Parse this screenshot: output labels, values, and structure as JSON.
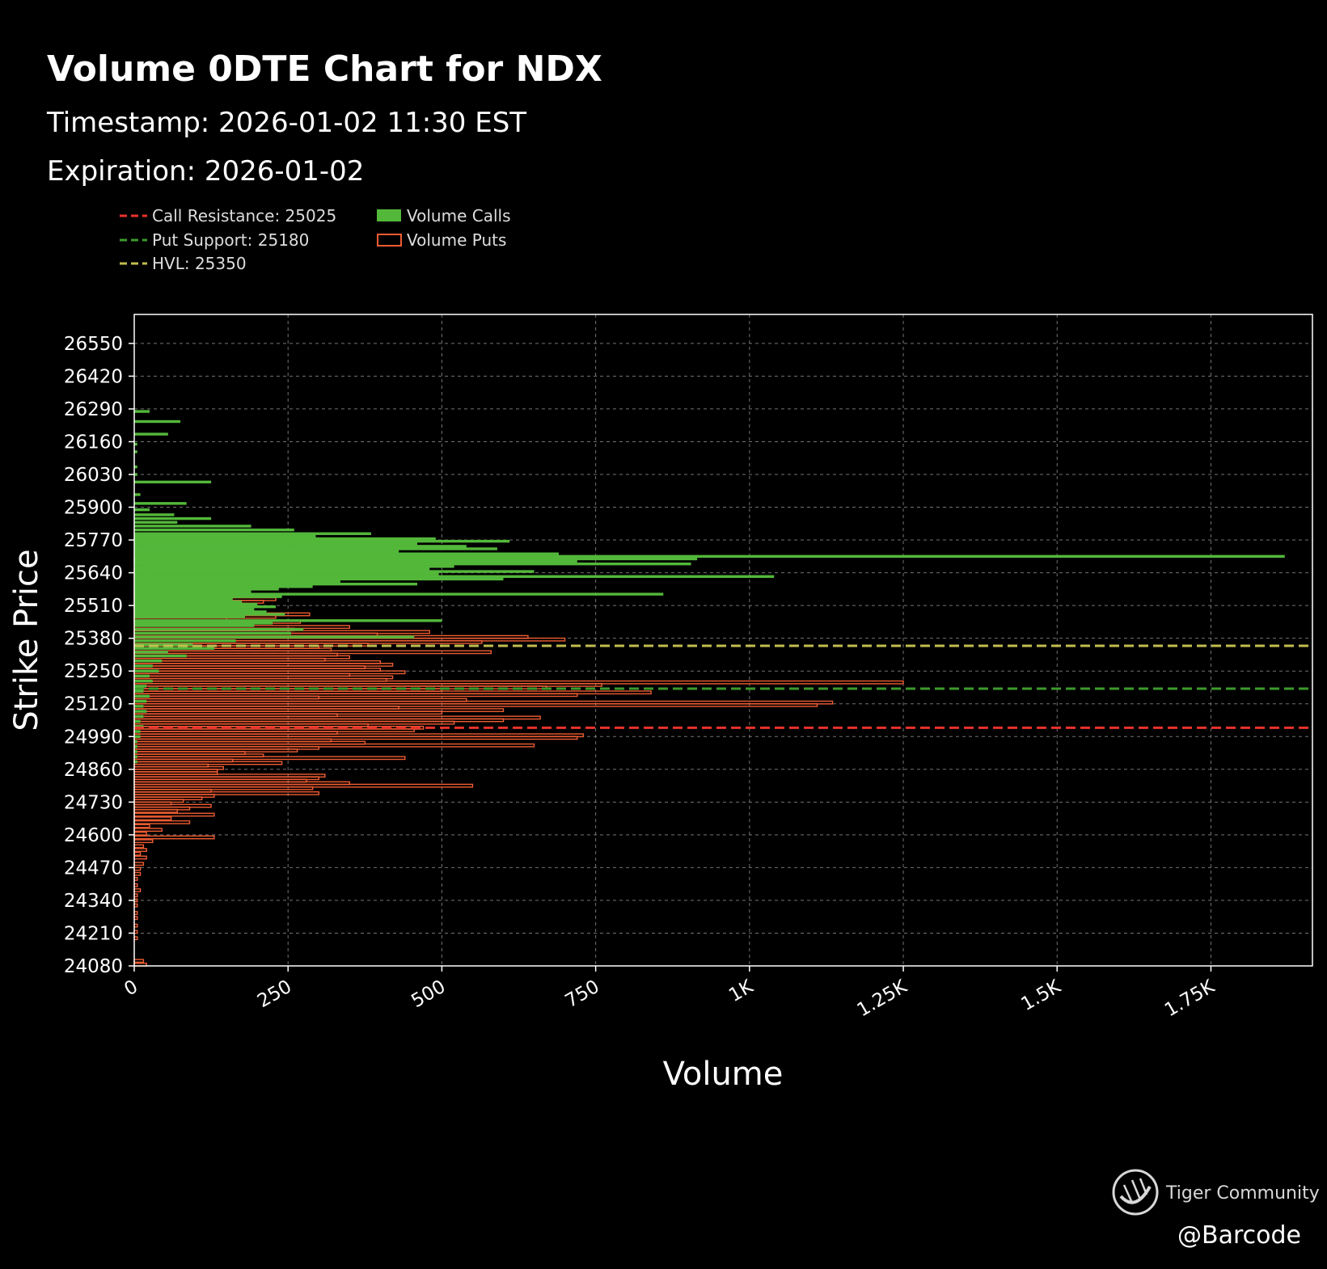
{
  "colors": {
    "background": "#000000",
    "calls": "#53b83a",
    "puts": "#ee5c32",
    "call_resistance": "#e8322c",
    "put_support": "#3c9a2c",
    "hvl": "#c2bd4f",
    "grid": "#9a9a9a",
    "text": "#ffffff",
    "legend_text": "#dddddd"
  },
  "chart_data": {
    "type": "bar",
    "orientation": "horizontal",
    "title": "Volume 0DTE Chart for NDX",
    "subtitles": [
      "Timestamp: 2026-01-02 11:30 EST",
      "Expiration: 2026-01-02"
    ],
    "xlabel": "Volume",
    "ylabel": "Strike Price",
    "xlim": [
      0,
      1915
    ],
    "ylim": [
      24080,
      26665
    ],
    "grid": true,
    "x_ticks": [
      {
        "value": 0,
        "label": "0"
      },
      {
        "value": 250,
        "label": "250"
      },
      {
        "value": 500,
        "label": "500"
      },
      {
        "value": 750,
        "label": "750"
      },
      {
        "value": 1000,
        "label": "1K"
      },
      {
        "value": 1250,
        "label": "1.25K"
      },
      {
        "value": 1500,
        "label": "1.5K"
      },
      {
        "value": 1750,
        "label": "1.75K"
      }
    ],
    "y_ticks": [
      24080,
      24210,
      24340,
      24470,
      24600,
      24730,
      24860,
      24990,
      25120,
      25250,
      25380,
      25510,
      25640,
      25770,
      25900,
      26030,
      26160,
      26290,
      26420,
      26550
    ],
    "legend": [
      {
        "label": "Call Resistance: 25025",
        "kind": "dashed",
        "color_key": "call_resistance"
      },
      {
        "label": "Put Support: 25180",
        "kind": "dashed",
        "color_key": "put_support"
      },
      {
        "label": "HVL: 25350",
        "kind": "dashed",
        "color_key": "hvl"
      },
      {
        "label": "Volume Calls",
        "kind": "filled",
        "color_key": "calls"
      },
      {
        "label": "Volume Puts",
        "kind": "outline",
        "color_key": "puts"
      }
    ],
    "legend_position": "top-left",
    "levels": [
      {
        "name": "Call Resistance",
        "strike": 25025,
        "color_key": "call_resistance"
      },
      {
        "name": "Put Support",
        "strike": 25180,
        "color_key": "put_support"
      },
      {
        "name": "HVL",
        "strike": 25350,
        "color_key": "hvl"
      }
    ],
    "series": [
      {
        "name": "Volume Calls",
        "color_key": "calls",
        "points": [
          [
            26280,
            25
          ],
          [
            26240,
            75
          ],
          [
            26190,
            55
          ],
          [
            26150,
            5
          ],
          [
            26120,
            5
          ],
          [
            26060,
            5
          ],
          [
            26030,
            5
          ],
          [
            26000,
            125
          ],
          [
            25950,
            10
          ],
          [
            25915,
            85
          ],
          [
            25890,
            25
          ],
          [
            25870,
            65
          ],
          [
            25855,
            125
          ],
          [
            25840,
            70
          ],
          [
            25825,
            190
          ],
          [
            25810,
            260
          ],
          [
            25795,
            385
          ],
          [
            25785,
            295
          ],
          [
            25775,
            490
          ],
          [
            25765,
            610
          ],
          [
            25755,
            460
          ],
          [
            25745,
            540
          ],
          [
            25735,
            590
          ],
          [
            25725,
            430
          ],
          [
            25715,
            690
          ],
          [
            25705,
            1870
          ],
          [
            25695,
            915
          ],
          [
            25685,
            720
          ],
          [
            25675,
            905
          ],
          [
            25665,
            520
          ],
          [
            25655,
            480
          ],
          [
            25645,
            650
          ],
          [
            25635,
            495
          ],
          [
            25625,
            1040
          ],
          [
            25615,
            600
          ],
          [
            25605,
            335
          ],
          [
            25595,
            460
          ],
          [
            25585,
            290
          ],
          [
            25575,
            235
          ],
          [
            25565,
            190
          ],
          [
            25555,
            860
          ],
          [
            25545,
            240
          ],
          [
            25535,
            160
          ],
          [
            25525,
            175
          ],
          [
            25515,
            200
          ],
          [
            25505,
            230
          ],
          [
            25495,
            195
          ],
          [
            25485,
            215
          ],
          [
            25475,
            245
          ],
          [
            25465,
            180
          ],
          [
            25450,
            500
          ],
          [
            25440,
            225
          ],
          [
            25430,
            195
          ],
          [
            25415,
            275
          ],
          [
            25400,
            255
          ],
          [
            25385,
            455
          ],
          [
            25370,
            165
          ],
          [
            25355,
            95
          ],
          [
            25340,
            130
          ],
          [
            25325,
            55
          ],
          [
            25310,
            85
          ],
          [
            25290,
            45
          ],
          [
            25270,
            30
          ],
          [
            25250,
            40
          ],
          [
            25230,
            25
          ],
          [
            25210,
            30
          ],
          [
            25190,
            20
          ],
          [
            25170,
            15
          ],
          [
            25150,
            25
          ],
          [
            25130,
            20
          ],
          [
            25110,
            15
          ],
          [
            25090,
            20
          ],
          [
            25070,
            15
          ],
          [
            25050,
            10
          ],
          [
            25030,
            15
          ],
          [
            25010,
            10
          ],
          [
            24990,
            10
          ],
          [
            24970,
            5
          ],
          [
            24950,
            5
          ],
          [
            24930,
            5
          ],
          [
            24910,
            5
          ],
          [
            24890,
            5
          ]
        ]
      },
      {
        "name": "Volume Puts",
        "color_key": "puts",
        "points": [
          [
            25690,
            45
          ],
          [
            25650,
            20
          ],
          [
            25630,
            25
          ],
          [
            25610,
            40
          ],
          [
            25595,
            75
          ],
          [
            25580,
            95
          ],
          [
            25565,
            120
          ],
          [
            25555,
            90
          ],
          [
            25545,
            160
          ],
          [
            25535,
            230
          ],
          [
            25525,
            210
          ],
          [
            25515,
            130
          ],
          [
            25505,
            145
          ],
          [
            25495,
            165
          ],
          [
            25485,
            120
          ],
          [
            25475,
            285
          ],
          [
            25465,
            230
          ],
          [
            25455,
            150
          ],
          [
            25445,
            270
          ],
          [
            25435,
            140
          ],
          [
            25425,
            350
          ],
          [
            25415,
            260
          ],
          [
            25405,
            480
          ],
          [
            25395,
            395
          ],
          [
            25385,
            640
          ],
          [
            25375,
            700
          ],
          [
            25365,
            565
          ],
          [
            25355,
            380
          ],
          [
            25345,
            300
          ],
          [
            25335,
            320
          ],
          [
            25325,
            580
          ],
          [
            25315,
            330
          ],
          [
            25305,
            350
          ],
          [
            25295,
            310
          ],
          [
            25285,
            400
          ],
          [
            25275,
            420
          ],
          [
            25265,
            375
          ],
          [
            25255,
            400
          ],
          [
            25245,
            440
          ],
          [
            25235,
            350
          ],
          [
            25225,
            420
          ],
          [
            25215,
            410
          ],
          [
            25205,
            1250
          ],
          [
            25195,
            760
          ],
          [
            25185,
            670
          ],
          [
            25175,
            500
          ],
          [
            25165,
            840
          ],
          [
            25155,
            720
          ],
          [
            25145,
            300
          ],
          [
            25135,
            540
          ],
          [
            25125,
            1135
          ],
          [
            25115,
            1110
          ],
          [
            25105,
            430
          ],
          [
            25095,
            600
          ],
          [
            25085,
            500
          ],
          [
            25075,
            330
          ],
          [
            25065,
            660
          ],
          [
            25055,
            600
          ],
          [
            25045,
            520
          ],
          [
            25035,
            380
          ],
          [
            25025,
            470
          ],
          [
            25015,
            455
          ],
          [
            25005,
            330
          ],
          [
            24995,
            730
          ],
          [
            24985,
            720
          ],
          [
            24975,
            320
          ],
          [
            24965,
            375
          ],
          [
            24955,
            650
          ],
          [
            24945,
            300
          ],
          [
            24935,
            265
          ],
          [
            24925,
            180
          ],
          [
            24915,
            210
          ],
          [
            24905,
            440
          ],
          [
            24895,
            160
          ],
          [
            24885,
            240
          ],
          [
            24875,
            120
          ],
          [
            24865,
            145
          ],
          [
            24855,
            135
          ],
          [
            24845,
            135
          ],
          [
            24835,
            310
          ],
          [
            24825,
            300
          ],
          [
            24815,
            280
          ],
          [
            24805,
            350
          ],
          [
            24795,
            550
          ],
          [
            24785,
            290
          ],
          [
            24775,
            125
          ],
          [
            24765,
            300
          ],
          [
            24755,
            130
          ],
          [
            24745,
            110
          ],
          [
            24735,
            80
          ],
          [
            24725,
            60
          ],
          [
            24715,
            125
          ],
          [
            24705,
            90
          ],
          [
            24695,
            70
          ],
          [
            24680,
            130
          ],
          [
            24665,
            60
          ],
          [
            24650,
            90
          ],
          [
            24635,
            25
          ],
          [
            24620,
            45
          ],
          [
            24605,
            20
          ],
          [
            24590,
            130
          ],
          [
            24575,
            30
          ],
          [
            24555,
            15
          ],
          [
            24540,
            20
          ],
          [
            24525,
            10
          ],
          [
            24510,
            20
          ],
          [
            24485,
            15
          ],
          [
            24465,
            10
          ],
          [
            24445,
            10
          ],
          [
            24425,
            5
          ],
          [
            24400,
            5
          ],
          [
            24380,
            10
          ],
          [
            24360,
            5
          ],
          [
            24340,
            5
          ],
          [
            24320,
            5
          ],
          [
            24290,
            5
          ],
          [
            24270,
            5
          ],
          [
            24240,
            5
          ],
          [
            24215,
            5
          ],
          [
            24190,
            5
          ],
          [
            24100,
            15
          ],
          [
            24085,
            20
          ]
        ]
      }
    ]
  },
  "watermark": {
    "brand": "Tiger Community",
    "handle": "@Barcode"
  }
}
